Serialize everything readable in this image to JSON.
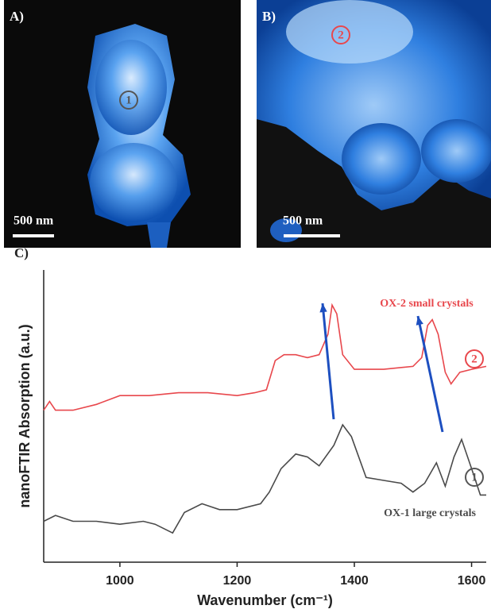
{
  "panels": [
    {
      "label": "A)",
      "scale_bar": "500 nm",
      "marker": "1"
    },
    {
      "label": "B)",
      "scale_bar": "500 nm",
      "marker": "2"
    }
  ],
  "chart_data": {
    "type": "line",
    "label": "C)",
    "xlabel": "Wavenumber (cm⁻¹)",
    "ylabel": "nanoFTIR Absorption (a.u.)",
    "xlim": [
      870,
      1625
    ],
    "xticks": [
      1000,
      1200,
      1400,
      1600
    ],
    "ylim": [
      0,
      1
    ],
    "series": [
      {
        "name": "OX-2 small crystals",
        "marker": "2",
        "color": "#e8474c",
        "x": [
          870,
          880,
          890,
          920,
          960,
          1000,
          1050,
          1100,
          1150,
          1200,
          1230,
          1250,
          1265,
          1280,
          1300,
          1320,
          1340,
          1355,
          1362,
          1370,
          1380,
          1400,
          1450,
          1500,
          1515,
          1525,
          1533,
          1543,
          1555,
          1565,
          1580,
          1600,
          1625
        ],
        "values": [
          0.52,
          0.55,
          0.52,
          0.52,
          0.54,
          0.57,
          0.57,
          0.58,
          0.58,
          0.57,
          0.58,
          0.59,
          0.69,
          0.71,
          0.71,
          0.7,
          0.71,
          0.78,
          0.88,
          0.85,
          0.71,
          0.66,
          0.66,
          0.67,
          0.7,
          0.81,
          0.83,
          0.78,
          0.65,
          0.61,
          0.65,
          0.66,
          0.67
        ]
      },
      {
        "name": "OX-1 large crystals",
        "marker": "1",
        "color": "#4a4a4a",
        "x": [
          870,
          890,
          920,
          960,
          1000,
          1040,
          1060,
          1090,
          1110,
          1140,
          1170,
          1200,
          1240,
          1255,
          1275,
          1300,
          1320,
          1340,
          1365,
          1380,
          1395,
          1420,
          1450,
          1480,
          1500,
          1520,
          1540,
          1555,
          1570,
          1583,
          1600,
          1615,
          1625
        ],
        "values": [
          0.14,
          0.16,
          0.14,
          0.14,
          0.13,
          0.14,
          0.13,
          0.1,
          0.17,
          0.2,
          0.18,
          0.18,
          0.2,
          0.24,
          0.32,
          0.37,
          0.36,
          0.33,
          0.4,
          0.47,
          0.43,
          0.29,
          0.28,
          0.27,
          0.24,
          0.27,
          0.34,
          0.26,
          0.36,
          0.42,
          0.32,
          0.23,
          0.23
        ]
      }
    ]
  }
}
